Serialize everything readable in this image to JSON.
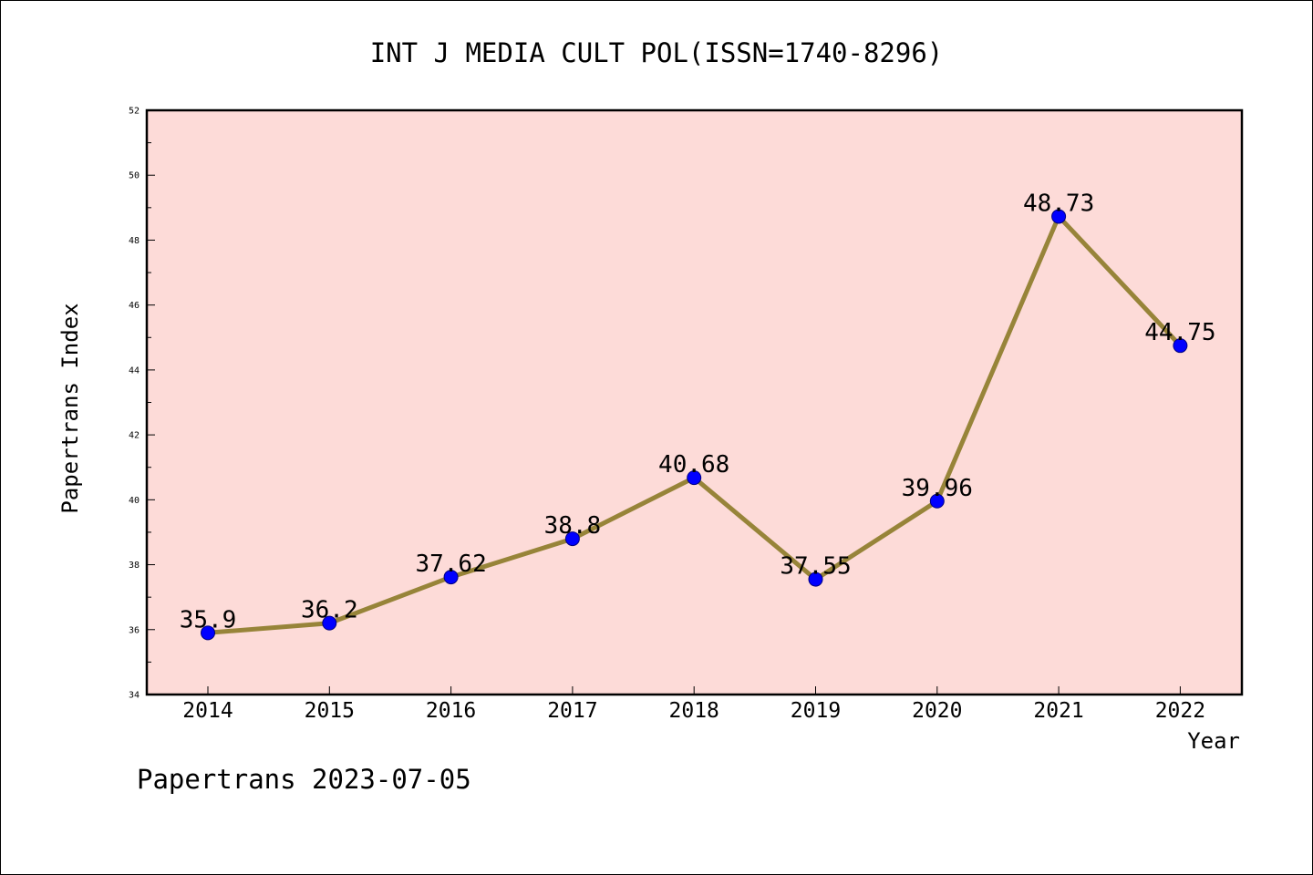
{
  "chart_data": {
    "type": "line",
    "title": "INT J MEDIA CULT POL(ISSN=1740-8296)",
    "xlabel": "Year",
    "ylabel": "Papertrans Index",
    "categories": [
      "2014",
      "2015",
      "2016",
      "2017",
      "2018",
      "2019",
      "2020",
      "2021",
      "2022"
    ],
    "series": [
      {
        "values": [
          35.9,
          36.2,
          37.62,
          38.8,
          40.68,
          37.55,
          39.96,
          48.73,
          44.75
        ],
        "data_labels": [
          "35.9",
          "36.2",
          "37.62",
          "38.8",
          "40.68",
          "37.55",
          "39.96",
          "48.73",
          "44.75"
        ]
      }
    ],
    "ylim": [
      34,
      52
    ],
    "y_ticks": [
      "34",
      "36",
      "38",
      "40",
      "42",
      "44",
      "46",
      "48",
      "50",
      "52"
    ],
    "grid": false,
    "legend": "none",
    "colors": {
      "plot_background": "#fddbd8",
      "line": "#978439",
      "marker": "#0000ff",
      "axis": "#000000"
    }
  },
  "footer": {
    "text": "Papertrans 2023-07-05"
  }
}
